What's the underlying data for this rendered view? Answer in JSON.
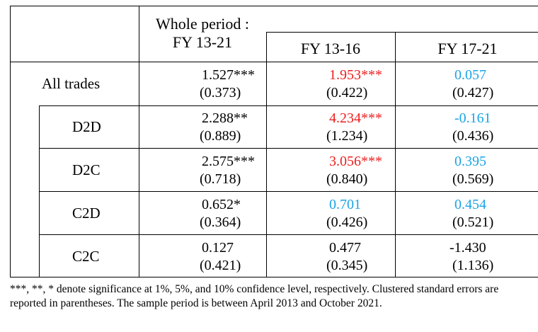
{
  "table": {
    "header": {
      "whole_line1": "Whole period :",
      "whole_line2": "FY 13-21",
      "sub1": "FY 13-16",
      "sub2": "FY 17-21"
    },
    "rows": [
      {
        "label": "All trades",
        "c1": {
          "coef": "1.527***",
          "se": "(0.373)"
        },
        "c2": {
          "coef": "1.953***",
          "se": "(0.422)",
          "color": "red"
        },
        "c3": {
          "coef": "0.057",
          "se": "(0.427)",
          "color": "blue"
        }
      },
      {
        "label": "D2D",
        "c1": {
          "coef": "2.288**",
          "se": "(0.889)"
        },
        "c2": {
          "coef": "4.234***",
          "se": "(1.234)",
          "color": "red"
        },
        "c3": {
          "coef": "-0.161",
          "se": "(0.436)",
          "color": "blue"
        }
      },
      {
        "label": "D2C",
        "c1": {
          "coef": "2.575***",
          "se": "(0.718)"
        },
        "c2": {
          "coef": "3.056***",
          "se": "(0.840)",
          "color": "red"
        },
        "c3": {
          "coef": "0.395",
          "se": "(0.569)",
          "color": "blue"
        }
      },
      {
        "label": "C2D",
        "c1": {
          "coef": "0.652*",
          "se": "(0.364)"
        },
        "c2": {
          "coef": "0.701",
          "se": "(0.426)",
          "color": "blue"
        },
        "c3": {
          "coef": "0.454",
          "se": "(0.521)",
          "color": "blue"
        }
      },
      {
        "label": "C2C",
        "c1": {
          "coef": "0.127",
          "se": "(0.421)"
        },
        "c2": {
          "coef": "0.477",
          "se": "(0.345)"
        },
        "c3": {
          "coef": "-1.430",
          "se": "(1.136)"
        }
      }
    ],
    "colors": {
      "red": "#ee1c1c",
      "blue": "#1aa3e6"
    }
  },
  "note": "***, **, * denote significance at 1%, 5%, and 10% confidence level, respectively. Clustered standard errors are reported in parentheses. The sample period is between April 2013 and October 2021."
}
